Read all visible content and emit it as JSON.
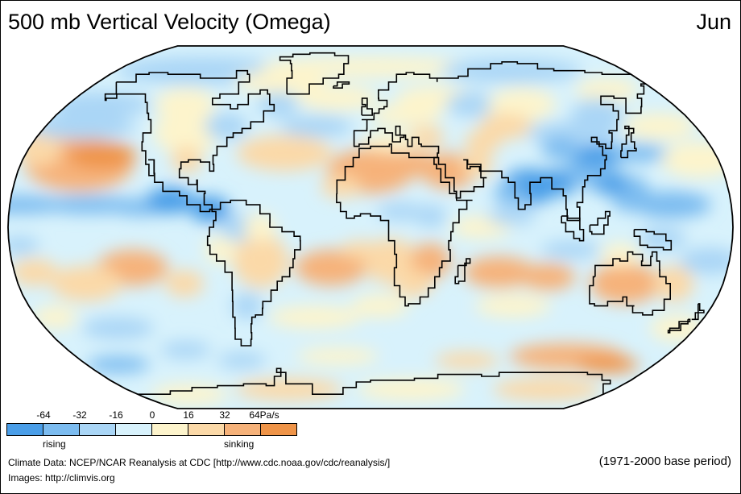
{
  "header": {
    "title": "500 mb Vertical Velocity (Omega)",
    "month": "Jun"
  },
  "legend": {
    "tick_labels": [
      "-64",
      "-32",
      "-16",
      "0",
      "16",
      "32",
      "64Pa/s"
    ],
    "colors": [
      "#4a9ee8",
      "#7cbcf0",
      "#aad6f6",
      "#d8f2fc",
      "#fdf4cc",
      "#fbd9a8",
      "#f6b27a",
      "#ef9448"
    ],
    "rising_label": "rising",
    "sinking_label": "sinking"
  },
  "credits": {
    "line1": "Climate Data:  NCEP/NCAR Reanalysis at CDC [http://www.cdc.noaa.gov/cdc/reanalysis/]",
    "line2": "Images:  http://climvis.org"
  },
  "period": "(1971-2000 base period)",
  "map": {
    "projection": "Robinson",
    "ocean_base_color": "#d8f2fc",
    "coastline_color": "#000000",
    "regions": [
      {
        "name": "Subtropical North Pacific",
        "lon": -150,
        "lat": 25,
        "level": "sinking"
      },
      {
        "name": "ITCZ Pacific",
        "lon": -150,
        "lat": 8,
        "level": "rising"
      },
      {
        "name": "Southeast Pacific",
        "lon": -110,
        "lat": -18,
        "level": "sinking"
      },
      {
        "name": "South Pacific",
        "lon": -155,
        "lat": -22,
        "level": "sinking"
      },
      {
        "name": "Central America",
        "lon": -85,
        "lat": 10,
        "level": "strong rising"
      },
      {
        "name": "Sahara",
        "lon": 10,
        "lat": 25,
        "level": "sinking"
      },
      {
        "name": "Arabia",
        "lon": 45,
        "lat": 25,
        "level": "sinking"
      },
      {
        "name": "South Asia monsoon",
        "lon": 85,
        "lat": 20,
        "level": "strong rising"
      },
      {
        "name": "Western Pacific",
        "lon": 130,
        "lat": 15,
        "level": "rising"
      },
      {
        "name": "South Indian Ocean",
        "lon": 80,
        "lat": -25,
        "level": "sinking"
      },
      {
        "name": "South Atlantic",
        "lon": -20,
        "lat": -20,
        "level": "sinking"
      },
      {
        "name": "Australia",
        "lon": 135,
        "lat": -25,
        "level": "sinking"
      },
      {
        "name": "Southern Ocean",
        "lon": 120,
        "lat": -55,
        "level": "sinking"
      },
      {
        "name": "Southern Ocean Pacific",
        "lon": -150,
        "lat": -60,
        "level": "rising"
      }
    ]
  }
}
